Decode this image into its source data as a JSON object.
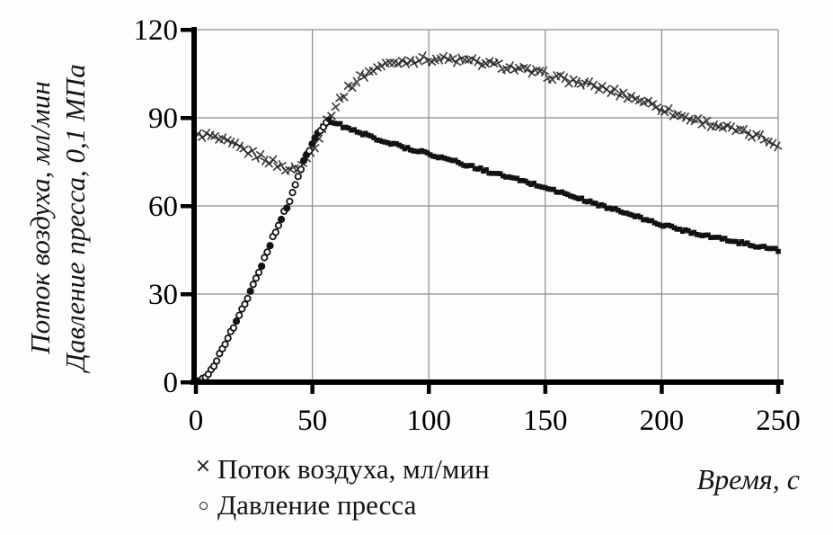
{
  "chart_data": {
    "type": "scatter",
    "title": "",
    "xlabel": "Время, с",
    "xlabel_word": "Время",
    "xlabel_unit": ", с",
    "ylabel_line1": "Поток воздуха, мл/мин",
    "ylabel_line2": "Давление пресса, 0,1 МПа",
    "xlim": [
      0,
      250
    ],
    "ylim": [
      0,
      120
    ],
    "x_ticks": [
      0,
      50,
      100,
      150,
      200,
      250
    ],
    "y_ticks": [
      0,
      30,
      60,
      90,
      120
    ],
    "grid": true,
    "legend_position": "bottom-left",
    "colors": {
      "series": "#1a1a1a",
      "grid": "#8d8d8d",
      "axis": "#000000",
      "background": "#fdfdfd"
    },
    "series": [
      {
        "name": "Поток воздуха,  мл/мин",
        "marker": "x",
        "legend_symbol": "×",
        "points": [
          [
            0,
            83.5
          ],
          [
            3,
            84.3
          ],
          [
            5,
            84
          ],
          [
            8,
            83.2
          ],
          [
            10,
            82.5
          ],
          [
            15,
            81
          ],
          [
            20,
            79.3
          ],
          [
            25,
            77.6
          ],
          [
            30,
            76
          ],
          [
            35,
            74
          ],
          [
            38,
            73
          ],
          [
            42,
            72.3
          ],
          [
            45,
            73.5
          ],
          [
            48,
            76.5
          ],
          [
            50,
            79
          ],
          [
            53,
            84
          ],
          [
            55,
            87.5
          ],
          [
            57,
            90
          ],
          [
            60,
            94
          ],
          [
            63,
            97.5
          ],
          [
            65,
            99.5
          ],
          [
            70,
            103.5
          ],
          [
            75,
            106
          ],
          [
            80,
            107.8
          ],
          [
            85,
            108.8
          ],
          [
            90,
            109.4
          ],
          [
            95,
            109.8
          ],
          [
            100,
            110
          ],
          [
            105,
            110
          ],
          [
            110,
            109.8
          ],
          [
            115,
            109.4
          ],
          [
            120,
            109
          ],
          [
            125,
            108.4
          ],
          [
            130,
            107.8
          ],
          [
            135,
            107.1
          ],
          [
            140,
            106.3
          ],
          [
            145,
            105.5
          ],
          [
            150,
            104.6
          ],
          [
            155,
            103.7
          ],
          [
            160,
            102.8
          ],
          [
            165,
            101.9
          ],
          [
            170,
            100.9
          ],
          [
            175,
            99.9
          ],
          [
            180,
            98.8
          ],
          [
            185,
            97.6
          ],
          [
            190,
            96.3
          ],
          [
            195,
            94.9
          ],
          [
            200,
            93.4
          ],
          [
            205,
            91.5
          ],
          [
            210,
            90.2
          ],
          [
            215,
            89.2
          ],
          [
            220,
            88.2
          ],
          [
            225,
            87.2
          ],
          [
            230,
            86.1
          ],
          [
            235,
            85
          ],
          [
            240,
            83.8
          ],
          [
            245,
            82.5
          ],
          [
            250,
            81.2
          ]
        ]
      },
      {
        "name": "Давление пресса",
        "marker": "circle",
        "legend_symbol": "∘",
        "fill_after_x": 57,
        "points": [
          [
            0,
            0.5
          ],
          [
            3,
            1.2
          ],
          [
            5,
            2.5
          ],
          [
            8,
            6
          ],
          [
            10,
            9.5
          ],
          [
            13,
            14
          ],
          [
            15,
            17
          ],
          [
            18,
            21.5
          ],
          [
            20,
            25
          ],
          [
            23,
            30
          ],
          [
            25,
            34
          ],
          [
            28,
            39.5
          ],
          [
            30,
            43
          ],
          [
            33,
            49
          ],
          [
            35,
            53
          ],
          [
            38,
            58
          ],
          [
            40,
            61
          ],
          [
            43,
            68
          ],
          [
            45,
            72
          ],
          [
            47,
            76.5
          ],
          [
            50,
            81
          ],
          [
            53,
            85.5
          ],
          [
            55,
            87.5
          ],
          [
            57,
            89
          ],
          [
            60,
            88.3
          ],
          [
            63,
            87.2
          ],
          [
            65,
            86.5
          ],
          [
            70,
            85
          ],
          [
            75,
            83.6
          ],
          [
            80,
            82.3
          ],
          [
            85,
            81
          ],
          [
            90,
            79.8
          ],
          [
            95,
            78.8
          ],
          [
            100,
            77.8
          ],
          [
            105,
            76.6
          ],
          [
            110,
            75.4
          ],
          [
            115,
            74.2
          ],
          [
            120,
            73
          ],
          [
            125,
            71.8
          ],
          [
            130,
            70.7
          ],
          [
            135,
            69.6
          ],
          [
            140,
            68.5
          ],
          [
            145,
            67.4
          ],
          [
            150,
            66.3
          ],
          [
            155,
            65
          ],
          [
            160,
            63.7
          ],
          [
            165,
            62.4
          ],
          [
            170,
            61.1
          ],
          [
            175,
            59.9
          ],
          [
            180,
            58.7
          ],
          [
            185,
            57.4
          ],
          [
            190,
            56.1
          ],
          [
            195,
            54.8
          ],
          [
            200,
            53.6
          ],
          [
            205,
            52.6
          ],
          [
            210,
            51.6
          ],
          [
            215,
            50.7
          ],
          [
            220,
            49.8
          ],
          [
            225,
            48.9
          ],
          [
            230,
            48.1
          ],
          [
            235,
            47.3
          ],
          [
            240,
            46.5
          ],
          [
            245,
            45.7
          ],
          [
            250,
            45
          ]
        ]
      }
    ]
  }
}
